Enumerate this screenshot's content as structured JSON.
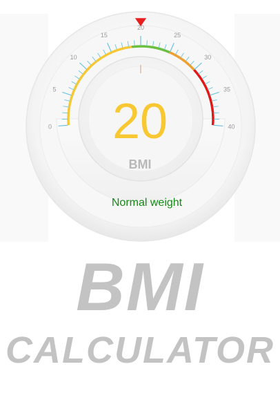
{
  "gauge": {
    "value": 20,
    "value_text": "20",
    "unit": "BMI",
    "status": "Normal weight",
    "scale_min": 0,
    "scale_max": 40,
    "tick_labels": [
      "0",
      "5",
      "10",
      "15",
      "20",
      "25",
      "30",
      "35",
      "40"
    ],
    "bands": [
      {
        "from": 0,
        "to": 18.5,
        "color": "#f5c838"
      },
      {
        "from": 18.5,
        "to": 25,
        "color": "#6cbf3f"
      },
      {
        "from": 25,
        "to": 30,
        "color": "#f0a030"
      },
      {
        "from": 30,
        "to": 40,
        "color": "#e01818"
      }
    ],
    "colors": {
      "value": "#f8c832",
      "unit": "#b8b8b8",
      "status": "#138a13",
      "tick": "#6cc4e0",
      "tick_label": "#9a9a9a",
      "pointer": "#e61e1e",
      "pointer_line": "#c8a080"
    }
  },
  "title": {
    "line1": "BMI",
    "line2": "CALCULATOR"
  }
}
